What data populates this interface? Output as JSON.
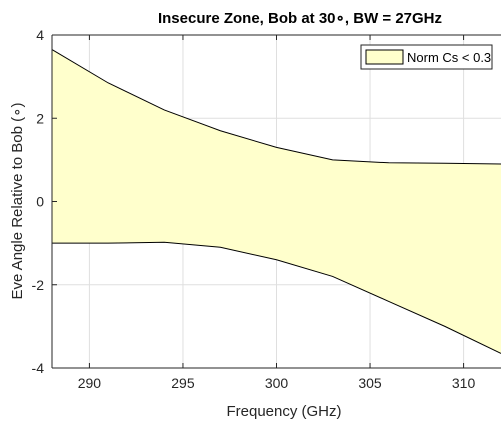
{
  "chart_data": {
    "type": "area",
    "title": "Insecure Zone, Bob at 30∘, BW = 27GHz",
    "xlabel": "Frequency (GHz)",
    "ylabel": "Eve Angle Relative to Bob (∘)",
    "xlim": [
      288,
      312
    ],
    "ylim": [
      -4,
      4
    ],
    "xticks": [
      290,
      295,
      300,
      305,
      310
    ],
    "yticks": [
      -4,
      -2,
      0,
      2,
      4
    ],
    "grid": true,
    "legend_position": "top-right",
    "series": [
      {
        "name": "Norm Cs < 0.3",
        "x": [
          288,
          291,
          294,
          297,
          300,
          303,
          306,
          309,
          312
        ],
        "upper": [
          3.65,
          2.85,
          2.2,
          1.7,
          1.3,
          1.0,
          0.93,
          0.92,
          0.9
        ],
        "lower": [
          -1.0,
          -1.0,
          -0.98,
          -1.1,
          -1.4,
          -1.8,
          -2.4,
          -3.0,
          -3.65
        ],
        "fill": "#ffffcc",
        "edge": "#000000"
      }
    ]
  }
}
